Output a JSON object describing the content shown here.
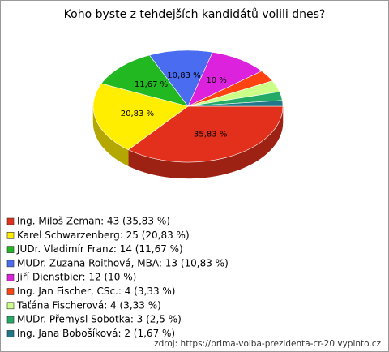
{
  "chart_data": {
    "type": "pie",
    "title": "Koho byste z tehdejších kandidátů volili dnes?",
    "categories": [
      "Ing. Miloš Zeman: 43 (35,83 %)",
      "Karel Schwarzenberg: 25 (20,83 %)",
      "JUDr. Vladimír Franz: 14 (11,67 %)",
      "MUDr. Zuzana Roithová, MBA: 13 (10,83 %)",
      "Jiří Dienstbier: 12 (10 %)",
      "Ing. Jan Fischer, CSc.: 4 (3,33 %)",
      "Taťána Fischerová: 4 (3,33 %)",
      "MUDr. Přemysl Sobotka: 3 (2,5 %)",
      "Ing. Jana Bobošíková: 2 (1,67 %)"
    ],
    "values": [
      35.83,
      20.83,
      11.67,
      10.83,
      10,
      3.33,
      3.33,
      2.5,
      1.67
    ],
    "value_labels": [
      "35,83 %",
      "20,83 %",
      "11,67 %",
      "10,83 %",
      "10 %",
      null,
      null,
      null,
      null
    ],
    "colors": [
      "#e2301c",
      "#ffee00",
      "#22b822",
      "#4a6cf0",
      "#dd22dd",
      "#ff4411",
      "#ccff88",
      "#22aa66",
      "#227788"
    ],
    "source": "zdroj: https://prima-volba-prezidenta-cr-20.vyplnto.cz"
  }
}
